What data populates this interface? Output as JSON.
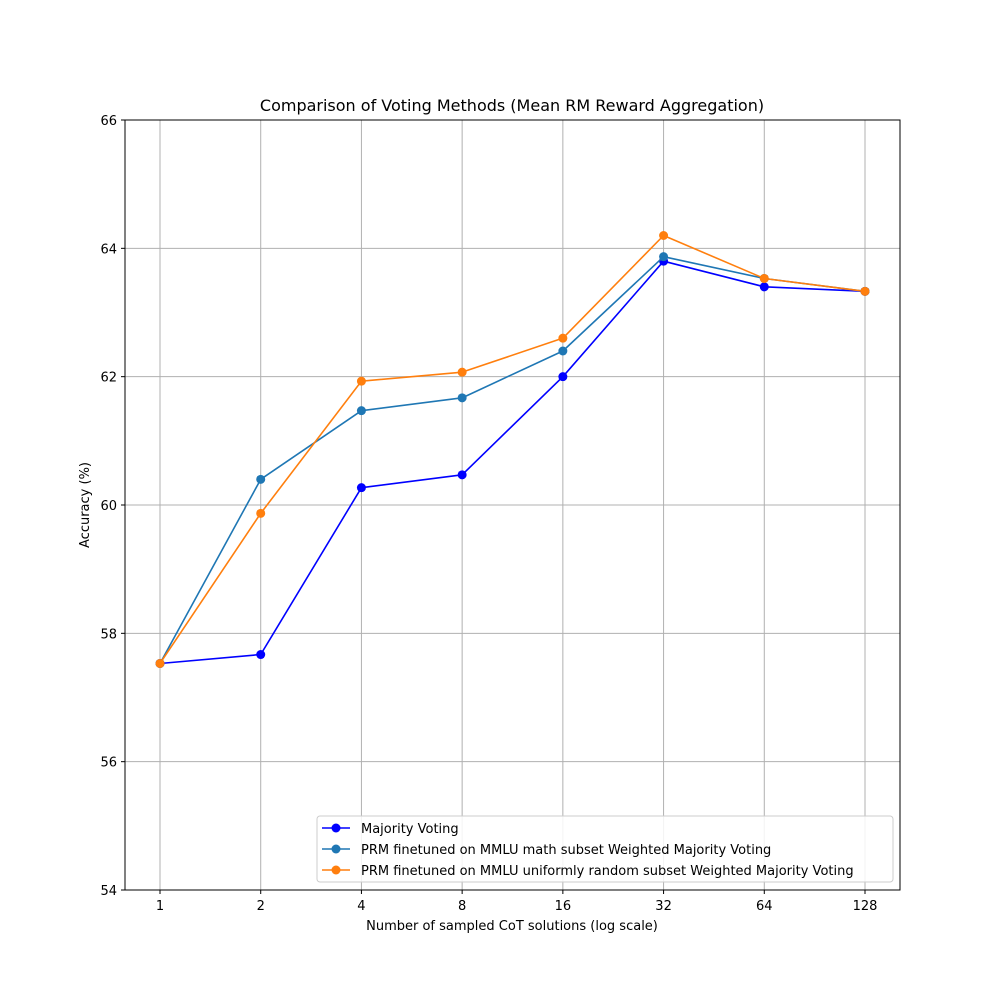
{
  "chart_data": {
    "type": "line",
    "title": "Comparison of Voting Methods (Mean RM Reward Aggregation)",
    "xlabel": "Number of sampled CoT solutions (log scale)",
    "ylabel": "Accuracy (%)",
    "x_scale": "log2",
    "x": [
      1,
      2,
      4,
      8,
      16,
      32,
      64,
      128
    ],
    "x_tick_labels": [
      "1",
      "2",
      "4",
      "8",
      "16",
      "32",
      "64",
      "128"
    ],
    "ylim": [
      54,
      66
    ],
    "y_ticks": [
      54,
      56,
      58,
      60,
      62,
      64,
      66
    ],
    "y_tick_labels": [
      "54",
      "56",
      "58",
      "60",
      "62",
      "64",
      "66"
    ],
    "grid": true,
    "legend_position": "lower-right",
    "series": [
      {
        "name": "Majority Voting",
        "color": "#0000ff",
        "marker": "circle",
        "values": [
          57.53,
          57.67,
          60.27,
          60.47,
          62.0,
          63.8,
          63.4,
          63.33
        ]
      },
      {
        "name": "PRM finetuned on MMLU math subset Weighted Majority Voting",
        "color": "#1f77b4",
        "marker": "circle",
        "values": [
          57.53,
          60.4,
          61.47,
          61.67,
          62.4,
          63.87,
          63.53,
          63.33
        ]
      },
      {
        "name": "PRM finetuned on MMLU uniformly random subset Weighted Majority Voting",
        "color": "#ff7f0e",
        "marker": "circle",
        "values": [
          57.53,
          59.87,
          61.93,
          62.07,
          62.6,
          64.2,
          63.53,
          63.33
        ]
      }
    ]
  }
}
